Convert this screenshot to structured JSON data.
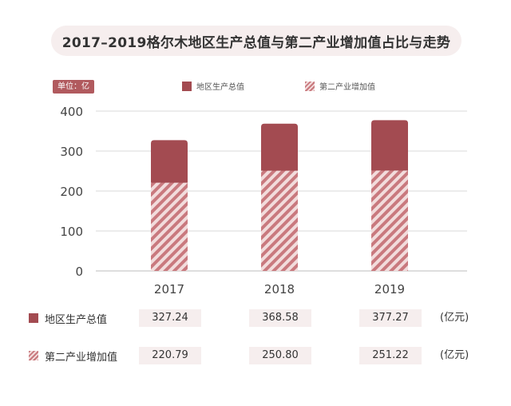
{
  "title": "2017–2019格尔木地区生产总值与第二产业增加值占比与走势",
  "unit_badge": "单位：亿",
  "legend": {
    "total": "地区生产总值",
    "second": "第二产业增加值"
  },
  "colors": {
    "total": "#a34b51",
    "second_stripe": "#c9797e",
    "second_bg": "#f2dcdc",
    "accent": "#b15a5e"
  },
  "chart_data": {
    "type": "bar",
    "categories": [
      "2017",
      "2018",
      "2019"
    ],
    "series": [
      {
        "name": "地区生产总值",
        "values": [
          327.24,
          368.58,
          377.27
        ]
      },
      {
        "name": "第二产业增加值",
        "values": [
          220.79,
          250.8,
          251.22
        ]
      }
    ],
    "yticks": [
      "0",
      "100",
      "200",
      "300",
      "400"
    ],
    "ylim": [
      0,
      400
    ],
    "grid": true,
    "legend_position": "top"
  },
  "table": {
    "rows": [
      {
        "label": "地区生产总值",
        "values": [
          "327.24",
          "368.58",
          "377.27"
        ],
        "unit": "(亿元)"
      },
      {
        "label": "第二产业增加值",
        "values": [
          "220.79",
          "250.80",
          "251.22"
        ],
        "unit": "(亿元)"
      }
    ]
  }
}
